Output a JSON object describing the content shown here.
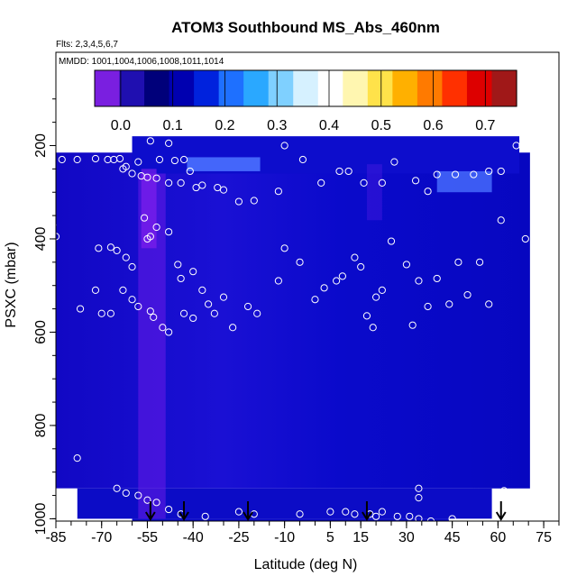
{
  "chart_data": {
    "type": "heatmap",
    "title": "ATOM3 Southbound MS_Abs_460nm",
    "flights_note": "Flts: 2,3,4,5,6,7",
    "dates_note": "MMDD: 1001,1004,1006,1008,1011,1014",
    "xlabel": "Latitude (deg N)",
    "ylabel": "PSXC (mbar)",
    "xlim": [
      -85,
      80
    ],
    "ylim": [
      1005,
      0
    ],
    "x_ticks": [
      -85,
      -70,
      -55,
      -40,
      -25,
      -10,
      5,
      15,
      30,
      45,
      60,
      75
    ],
    "y_ticks": [
      200,
      400,
      600,
      800,
      1000
    ],
    "colorbar": {
      "range": [
        -0.05,
        0.76
      ],
      "ticks": [
        0.0,
        0.1,
        0.2,
        0.3,
        0.4,
        0.5,
        0.6,
        0.7
      ],
      "tick_labels": [
        "0.0",
        "0.1",
        "0.2",
        "0.3",
        "0.4",
        "0.5",
        "0.6",
        "0.7"
      ],
      "colors": [
        "#7a1fe0",
        "#1f0fb0",
        "#00007a",
        "#0000b0",
        "#0022dd",
        "#1e70ff",
        "#2aa8ff",
        "#7fd0ff",
        "#d6f1ff",
        "#ffffff",
        "#fff6b0",
        "#ffe24a",
        "#ffb000",
        "#ff7a00",
        "#ff3000",
        "#dd0000",
        "#a01818"
      ]
    },
    "field_description_colors": {
      "background": "#0a0ac8",
      "purple_band": "#6a1ce8",
      "light_patch": "#4a70ff"
    },
    "observations": [
      [
        -83,
        230
      ],
      [
        -78,
        230
      ],
      [
        -72,
        228
      ],
      [
        -68,
        230
      ],
      [
        -66,
        230
      ],
      [
        -64,
        228
      ],
      [
        -62,
        245
      ],
      [
        -60,
        260
      ],
      [
        -57,
        265
      ],
      [
        -55,
        268
      ],
      [
        -52,
        270
      ],
      [
        -63,
        250
      ],
      [
        -58,
        235
      ],
      [
        -54,
        190
      ],
      [
        -51,
        230
      ],
      [
        -48,
        195
      ],
      [
        -46,
        232
      ],
      [
        -43,
        230
      ],
      [
        -41,
        255
      ],
      [
        -48,
        280
      ],
      [
        -44,
        280
      ],
      [
        -39,
        290
      ],
      [
        -37,
        285
      ],
      [
        -32,
        290
      ],
      [
        -30,
        295
      ],
      [
        -25,
        320
      ],
      [
        -20,
        318
      ],
      [
        -12,
        298
      ],
      [
        -10,
        200
      ],
      [
        -4,
        230
      ],
      [
        2,
        280
      ],
      [
        8,
        255
      ],
      [
        11,
        255
      ],
      [
        16,
        280
      ],
      [
        22,
        280
      ],
      [
        26,
        235
      ],
      [
        33,
        275
      ],
      [
        37,
        298
      ],
      [
        40,
        262
      ],
      [
        46,
        262
      ],
      [
        52,
        262
      ],
      [
        57,
        255
      ],
      [
        61,
        255
      ],
      [
        66,
        200
      ],
      [
        68,
        200
      ],
      [
        71,
        200
      ],
      [
        -86,
        370
      ],
      [
        -85,
        395
      ],
      [
        -71,
        420
      ],
      [
        -67,
        418
      ],
      [
        -65,
        425
      ],
      [
        -62,
        440
      ],
      [
        -60,
        460
      ],
      [
        -56,
        355
      ],
      [
        -55,
        400
      ],
      [
        -54,
        395
      ],
      [
        -52,
        375
      ],
      [
        -48,
        385
      ],
      [
        -45,
        455
      ],
      [
        -44,
        485
      ],
      [
        -40,
        470
      ],
      [
        -37,
        510
      ],
      [
        -33,
        560
      ],
      [
        -30,
        525
      ],
      [
        -27,
        590
      ],
      [
        -22,
        545
      ],
      [
        -19,
        560
      ],
      [
        -12,
        490
      ],
      [
        -10,
        420
      ],
      [
        -5,
        450
      ],
      [
        0,
        530
      ],
      [
        3,
        505
      ],
      [
        7,
        490
      ],
      [
        9,
        480
      ],
      [
        13,
        440
      ],
      [
        15,
        460
      ],
      [
        17,
        565
      ],
      [
        19,
        590
      ],
      [
        20,
        525
      ],
      [
        22,
        510
      ],
      [
        25,
        405
      ],
      [
        30,
        455
      ],
      [
        32,
        585
      ],
      [
        34,
        490
      ],
      [
        37,
        545
      ],
      [
        40,
        485
      ],
      [
        44,
        540
      ],
      [
        47,
        450
      ],
      [
        50,
        520
      ],
      [
        54,
        450
      ],
      [
        57,
        540
      ],
      [
        61,
        360
      ],
      [
        69,
        400
      ],
      [
        -63,
        510
      ],
      [
        -60,
        530
      ],
      [
        -58,
        545
      ],
      [
        -54,
        555
      ],
      [
        -53,
        568
      ],
      [
        -50,
        590
      ],
      [
        -48,
        600
      ],
      [
        -43,
        560
      ],
      [
        -40,
        570
      ],
      [
        -35,
        540
      ],
      [
        -77,
        550
      ],
      [
        -78,
        870
      ],
      [
        -65,
        935
      ],
      [
        -62,
        945
      ],
      [
        -58,
        950
      ],
      [
        -55,
        960
      ],
      [
        -52,
        965
      ],
      [
        -48,
        980
      ],
      [
        -44,
        990
      ],
      [
        -36,
        995
      ],
      [
        -25,
        985
      ],
      [
        -20,
        990
      ],
      [
        -5,
        990
      ],
      [
        5,
        985
      ],
      [
        10,
        985
      ],
      [
        13,
        990
      ],
      [
        18,
        990
      ],
      [
        20,
        995
      ],
      [
        22,
        985
      ],
      [
        27,
        995
      ],
      [
        31,
        995
      ],
      [
        34,
        1000
      ],
      [
        38,
        1005
      ],
      [
        45,
        1000
      ],
      [
        34,
        935
      ],
      [
        34,
        955
      ],
      [
        62,
        940
      ],
      [
        72,
        860
      ],
      [
        -72,
        510
      ],
      [
        -70,
        560
      ],
      [
        -67,
        560
      ]
    ],
    "flight_markers": [
      -54,
      -43,
      -22,
      17,
      61
    ]
  }
}
